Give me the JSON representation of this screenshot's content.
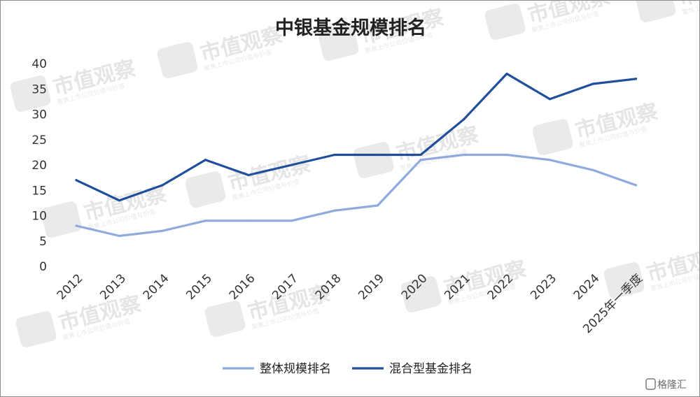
{
  "chart_data": {
    "type": "line",
    "title": "中银基金规模排名",
    "categories": [
      "2012",
      "2013",
      "2014",
      "2015",
      "2016",
      "2017",
      "2018",
      "2019",
      "2020",
      "2021",
      "2022",
      "2023",
      "2024",
      "2025年一季度"
    ],
    "y_ticks": [
      "0",
      "5",
      "10",
      "15",
      "20",
      "25",
      "30",
      "35",
      "40"
    ],
    "ylim": [
      0,
      40
    ],
    "grid": false,
    "legend_position": "bottom",
    "series": [
      {
        "name": "整体规模排名",
        "color": "#8faadc",
        "values": [
          8,
          6,
          7,
          9,
          9,
          9,
          11,
          12,
          21,
          22,
          22,
          21,
          19,
          16
        ]
      },
      {
        "name": "混合型基金排名",
        "color": "#1f4e9a",
        "values": [
          17,
          13,
          16,
          21,
          18,
          20,
          22,
          22,
          22,
          29,
          38,
          33,
          36,
          37
        ]
      }
    ]
  },
  "watermark": {
    "text": "市值观察",
    "subtext": "聚焦上市公司价值与价值"
  },
  "source_badge": {
    "text": "格隆汇"
  }
}
